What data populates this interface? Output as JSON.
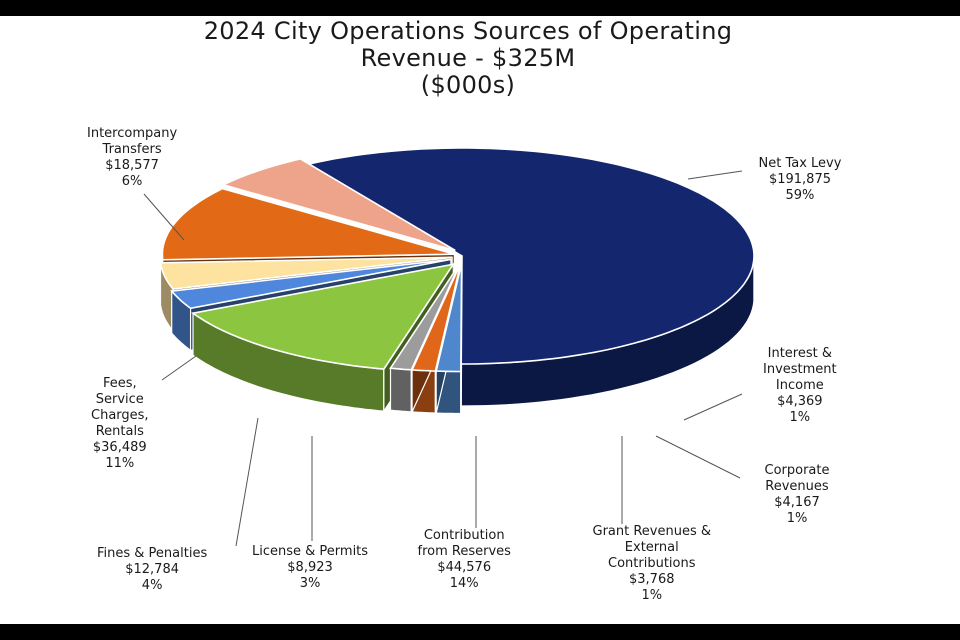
{
  "chart_data": {
    "type": "pie",
    "title_lines": [
      "2024 City Operations Sources of Operating",
      "Revenue - $325M",
      "($000s)"
    ],
    "style": "3d-exploded",
    "slices": [
      {
        "name_lines": [
          "Net Tax Levy"
        ],
        "value": "$191,875",
        "value_num": 191875,
        "percent": "59%",
        "color": "#13266e"
      },
      {
        "name_lines": [
          "Interest &",
          "Investment",
          "Income"
        ],
        "value": "$4,369",
        "value_num": 4369,
        "percent": "1%",
        "color": "#4f87cc"
      },
      {
        "name_lines": [
          "Corporate",
          "Revenues"
        ],
        "value": "$4,167",
        "value_num": 4167,
        "percent": "1%",
        "color": "#e0661a"
      },
      {
        "name_lines": [
          "Grant Revenues &",
          "External",
          "Contributions"
        ],
        "value": "$3,768",
        "value_num": 3768,
        "percent": "1%",
        "color": "#9c9c9c"
      },
      {
        "name_lines": [
          "Contribution",
          "from Reserves"
        ],
        "value": "$44,576",
        "value_num": 44576,
        "percent": "14%",
        "color": "#8cc641"
      },
      {
        "name_lines": [
          "License & Permits"
        ],
        "value": "$8,923",
        "value_num": 8923,
        "percent": "3%",
        "color": "#4f87dd"
      },
      {
        "name_lines": [
          "Fines & Penalties"
        ],
        "value": "$12,784",
        "value_num": 12784,
        "percent": "4%",
        "color": "#fde2a0"
      },
      {
        "name_lines": [
          "Fees,",
          "Service",
          "Charges,",
          "Rentals"
        ],
        "value": "$36,489",
        "value_num": 36489,
        "percent": "11%",
        "color": "#e26a16"
      },
      {
        "name_lines": [
          "Intercompany",
          "Transfers"
        ],
        "value": "$18,577",
        "value_num": 18577,
        "percent": "6%",
        "color": "#eea48a"
      }
    ]
  }
}
